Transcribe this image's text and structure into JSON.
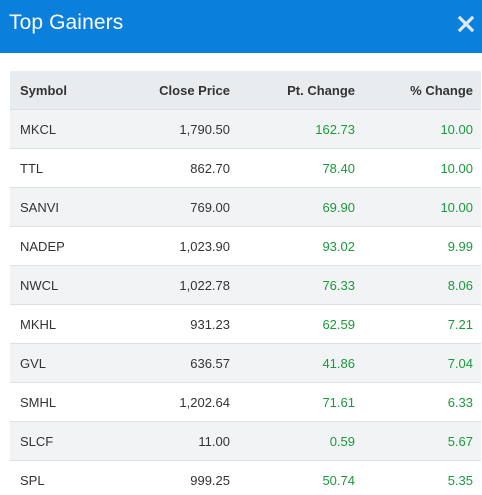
{
  "header": {
    "title": "Top Gainers",
    "close_icon": "close-icon"
  },
  "colors": {
    "header_bg": "#0a7fdc",
    "positive": "#1a9a3a",
    "row_alt": "#f2f3f5"
  },
  "table": {
    "columns": [
      "Symbol",
      "Close Price",
      "Pt. Change",
      "% Change"
    ],
    "rows": [
      {
        "symbol": "MKCL",
        "close": "1,790.50",
        "pt": "162.73",
        "pct": "10.00"
      },
      {
        "symbol": "TTL",
        "close": "862.70",
        "pt": "78.40",
        "pct": "10.00"
      },
      {
        "symbol": "SANVI",
        "close": "769.00",
        "pt": "69.90",
        "pct": "10.00"
      },
      {
        "symbol": "NADEP",
        "close": "1,023.90",
        "pt": "93.02",
        "pct": "9.99"
      },
      {
        "symbol": "NWCL",
        "close": "1,022.78",
        "pt": "76.33",
        "pct": "8.06"
      },
      {
        "symbol": "MKHL",
        "close": "931.23",
        "pt": "62.59",
        "pct": "7.21"
      },
      {
        "symbol": "GVL",
        "close": "636.57",
        "pt": "41.86",
        "pct": "7.04"
      },
      {
        "symbol": "SMHL",
        "close": "1,202.64",
        "pt": "71.61",
        "pct": "6.33"
      },
      {
        "symbol": "SLCF",
        "close": "11.00",
        "pt": "0.59",
        "pct": "5.67"
      },
      {
        "symbol": "SPL",
        "close": "999.25",
        "pt": "50.74",
        "pct": "5.35"
      }
    ]
  }
}
